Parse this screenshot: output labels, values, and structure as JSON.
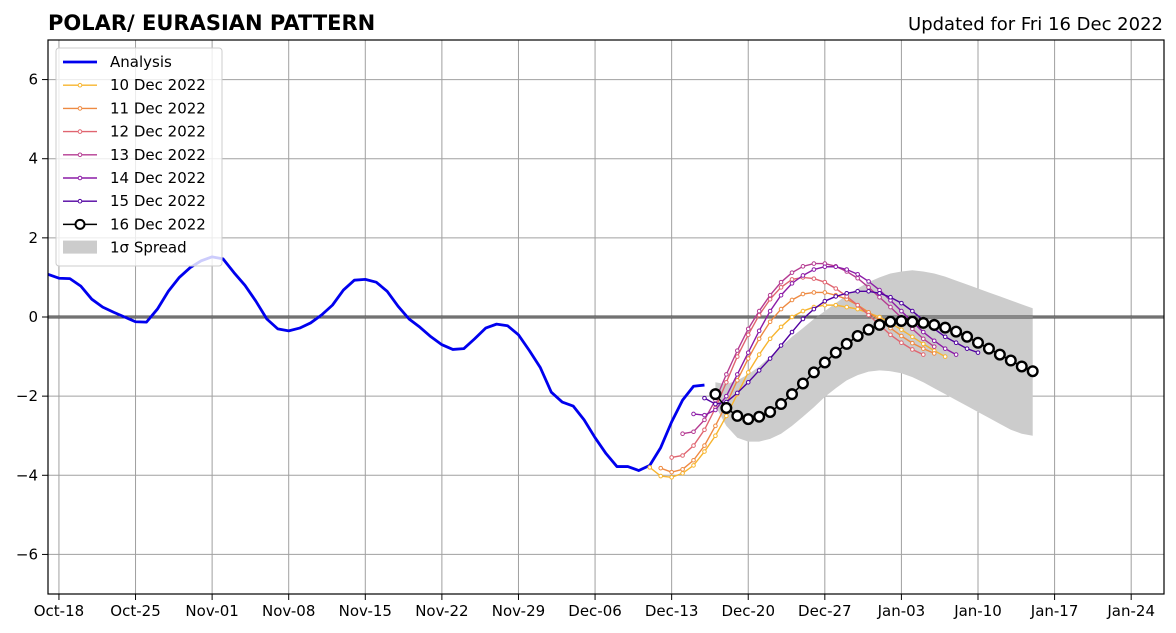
{
  "chart_data": {
    "type": "line",
    "title": "POLAR/ EURASIAN  PATTERN",
    "subtitle": "Updated for Fri 16 Dec 2022",
    "xlabel": "",
    "ylabel": "",
    "x_range": [
      "2022-10-17",
      "2023-01-27"
    ],
    "ylim": [
      -7,
      7
    ],
    "yticks": [
      -6,
      -4,
      -2,
      0,
      2,
      4,
      6
    ],
    "ytick_labels": [
      "−6",
      "−4",
      "−2",
      "0",
      "2",
      "4",
      "6"
    ],
    "xticks": [
      "2022-10-18",
      "2022-10-25",
      "2022-11-01",
      "2022-11-08",
      "2022-11-15",
      "2022-11-22",
      "2022-11-29",
      "2022-12-06",
      "2022-12-13",
      "2022-12-20",
      "2022-12-27",
      "2023-01-03",
      "2023-01-10",
      "2023-01-17",
      "2023-01-24"
    ],
    "xtick_labels": [
      "Oct-18",
      "Oct-25",
      "Nov-01",
      "Nov-08",
      "Nov-15",
      "Nov-22",
      "Nov-29",
      "Dec-06",
      "Dec-13",
      "Dec-20",
      "Dec-27",
      "Jan-03",
      "Jan-10",
      "Jan-17",
      "Jan-24"
    ],
    "grid": true,
    "zero_line": true,
    "legend_position": "upper-left",
    "analysis": {
      "name": "Analysis",
      "color": "#0000ee",
      "start": "2022-10-17",
      "values": [
        1.08,
        0.98,
        0.97,
        0.78,
        0.45,
        0.25,
        0.12,
        0.0,
        -0.12,
        -0.13,
        0.2,
        0.65,
        1.0,
        1.25,
        1.42,
        1.52,
        1.47,
        1.12,
        0.8,
        0.4,
        -0.05,
        -0.3,
        -0.35,
        -0.28,
        -0.15,
        0.05,
        0.3,
        0.68,
        0.93,
        0.95,
        0.88,
        0.65,
        0.27,
        -0.05,
        -0.26,
        -0.5,
        -0.7,
        -0.82,
        -0.8,
        -0.55,
        -0.28,
        -0.18,
        -0.22,
        -0.45,
        -0.85,
        -1.28,
        -1.9,
        -2.15,
        -2.25,
        -2.6,
        -3.05,
        -3.45,
        -3.78,
        -3.78,
        -3.88,
        -3.75,
        -3.3,
        -2.65,
        -2.1,
        -1.75,
        -1.72
      ]
    },
    "series": [
      {
        "name": "10 Dec 2022",
        "color": "#f7b42e",
        "start": "2022-12-11",
        "values": [
          -3.8,
          -4.02,
          -4.05,
          -3.95,
          -3.75,
          -3.4,
          -3.0,
          -2.5,
          -1.95,
          -1.4,
          -0.95,
          -0.55,
          -0.25,
          0.0,
          0.15,
          0.25,
          0.3,
          0.3,
          0.25,
          0.2,
          0.1,
          0.0,
          -0.15,
          -0.32,
          -0.5,
          -0.68,
          -0.85,
          -1.0
        ]
      },
      {
        "name": "11 Dec 2022",
        "color": "#ee8a42",
        "start": "2022-12-12",
        "values": [
          -3.82,
          -3.92,
          -3.85,
          -3.62,
          -3.25,
          -2.75,
          -2.2,
          -1.6,
          -1.05,
          -0.55,
          -0.12,
          0.2,
          0.43,
          0.58,
          0.62,
          0.62,
          0.55,
          0.45,
          0.3,
          0.12,
          -0.08,
          -0.28,
          -0.48,
          -0.66,
          -0.8,
          -0.92
        ]
      },
      {
        "name": "12 Dec 2022",
        "color": "#e06570",
        "start": "2022-12-13",
        "values": [
          -3.55,
          -3.5,
          -3.25,
          -2.85,
          -2.3,
          -1.65,
          -1.0,
          -0.45,
          0.05,
          0.45,
          0.75,
          0.95,
          1.0,
          0.97,
          0.88,
          0.72,
          0.52,
          0.3,
          0.05,
          -0.2,
          -0.45,
          -0.65,
          -0.82,
          -0.95
        ]
      },
      {
        "name": "13 Dec 2022",
        "color": "#b53b92",
        "start": "2022-12-14",
        "values": [
          -2.95,
          -2.9,
          -2.6,
          -2.1,
          -1.45,
          -0.85,
          -0.3,
          0.15,
          0.55,
          0.88,
          1.12,
          1.28,
          1.35,
          1.35,
          1.28,
          1.15,
          0.98,
          0.75,
          0.5,
          0.25,
          -0.02,
          -0.3,
          -0.55,
          -0.75
        ]
      },
      {
        "name": "14 Dec 2022",
        "color": "#8c1ba7",
        "start": "2022-12-15",
        "values": [
          -2.45,
          -2.48,
          -2.35,
          -2.0,
          -1.45,
          -0.9,
          -0.35,
          0.15,
          0.55,
          0.85,
          1.05,
          1.2,
          1.27,
          1.27,
          1.2,
          1.08,
          0.9,
          0.68,
          0.42,
          0.15,
          -0.12,
          -0.38,
          -0.6,
          -0.8,
          -0.95
        ]
      },
      {
        "name": "15 Dec 2022",
        "color": "#5000a0",
        "start": "2022-12-16",
        "values": [
          -2.05,
          -2.2,
          -2.15,
          -1.92,
          -1.65,
          -1.35,
          -1.05,
          -0.72,
          -0.38,
          -0.05,
          0.2,
          0.4,
          0.52,
          0.6,
          0.65,
          0.65,
          0.6,
          0.5,
          0.35,
          0.15,
          -0.08,
          -0.3,
          -0.5,
          -0.65,
          -0.8,
          -0.9
        ]
      },
      {
        "name": "16 Dec 2022",
        "color": "#000000",
        "marker": "open-circle",
        "start": "2022-12-17",
        "values": [
          -1.95,
          -2.3,
          -2.5,
          -2.58,
          -2.52,
          -2.4,
          -2.2,
          -1.95,
          -1.68,
          -1.4,
          -1.15,
          -0.9,
          -0.68,
          -0.48,
          -0.32,
          -0.2,
          -0.12,
          -0.1,
          -0.12,
          -0.15,
          -0.2,
          -0.27,
          -0.37,
          -0.5,
          -0.65,
          -0.8,
          -0.95,
          -1.1,
          -1.25,
          -1.37
        ]
      }
    ],
    "spread": {
      "name": "1σ Spread",
      "color": "#cccccc",
      "start": "2022-12-17",
      "upper": [
        -1.65,
        -1.7,
        -1.6,
        -1.45,
        -1.25,
        -1.0,
        -0.75,
        -0.5,
        -0.28,
        -0.05,
        0.15,
        0.35,
        0.55,
        0.72,
        0.88,
        1.0,
        1.1,
        1.15,
        1.18,
        1.15,
        1.1,
        1.02,
        0.92,
        0.82,
        0.72,
        0.62,
        0.52,
        0.42,
        0.32,
        0.22
      ],
      "lower": [
        -2.25,
        -2.75,
        -3.05,
        -3.15,
        -3.15,
        -3.08,
        -2.95,
        -2.75,
        -2.52,
        -2.28,
        -2.02,
        -1.8,
        -1.6,
        -1.47,
        -1.38,
        -1.35,
        -1.37,
        -1.42,
        -1.52,
        -1.65,
        -1.8,
        -1.95,
        -2.1,
        -2.25,
        -2.4,
        -2.55,
        -2.7,
        -2.85,
        -2.95,
        -3.0
      ]
    }
  }
}
